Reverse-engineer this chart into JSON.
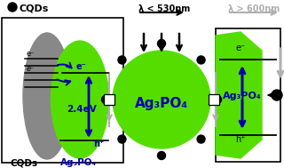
{
  "bg_color": "#ffffff",
  "green_color": "#55dd00",
  "gray_color": "#888888",
  "dark_blue": "#0000aa",
  "black": "#000000",
  "light_gray": "#b0b0b0",
  "title_lambda1": "λ < 530nm",
  "title_lambda2": "λ > 600nm",
  "label_cqds_top": "CQDs",
  "label_cqds_bot": "CQDs",
  "label_ag3po4_1": "Ag₃PO₄",
  "label_ag3po4_2": "Ag₃PO₄",
  "label_ag3po4_3": "Ag₃PO₄",
  "label_energy": "2.4eV",
  "label_eminus": "e⁻",
  "label_hplus": "h⁺"
}
